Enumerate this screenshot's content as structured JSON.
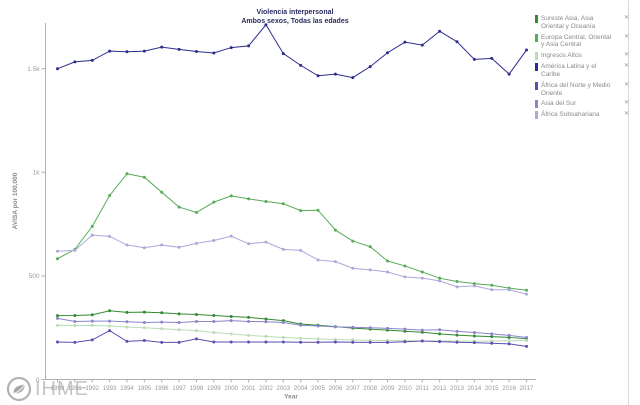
{
  "header": {
    "title": "Violencia interpersonal",
    "subtitle": "Ambos sexos, Todas las edades"
  },
  "branding": {
    "logo_text": "IHME",
    "logo_icon": "ihme-leaf-circle"
  },
  "legend": {
    "close_glyph": "✕",
    "items": [
      {
        "label": "Sureste Asia, Asia Oriental y Oceanía",
        "color": "#338a33"
      },
      {
        "label": "Europa Central, Oriental y Asia Central",
        "color": "#56ab56"
      },
      {
        "label": "Ingresos Altos",
        "color": "#b9ddb5"
      },
      {
        "label": "América Latina y el Caribe",
        "color": "#2c2c8f"
      },
      {
        "label": "África del Norte y Medio Oriente",
        "color": "#5b4fb0"
      },
      {
        "label": "Asia del Sur",
        "color": "#8a86cb"
      },
      {
        "label": "África Subsahariana",
        "color": "#aba8da"
      }
    ]
  },
  "chart_data": {
    "type": "line",
    "title": "Violencia interpersonal",
    "subtitle": "Ambos sexos, Todas las edades",
    "xlabel": "Year",
    "ylabel": "AVISA por 100,000",
    "x": [
      1990,
      1991,
      1992,
      1993,
      1994,
      1995,
      1996,
      1997,
      1998,
      1999,
      2000,
      2001,
      2002,
      2003,
      2004,
      2005,
      2006,
      2007,
      2008,
      2009,
      2010,
      2011,
      2012,
      2013,
      2014,
      2015,
      2016,
      2017
    ],
    "ylim": [
      0,
      1720
    ],
    "grid": false,
    "legend_position": "top-right",
    "yticks": [
      {
        "value": 0,
        "label": "0"
      },
      {
        "value": 500,
        "label": "500"
      },
      {
        "value": 1000,
        "label": "1k"
      },
      {
        "value": 1500,
        "label": "1.5k"
      }
    ],
    "series": [
      {
        "name": "Sureste Asia, Asia Oriental y Oceanía",
        "color": "#338a33",
        "values": [
          308,
          309,
          312,
          332,
          324,
          325,
          322,
          317,
          314,
          309,
          304,
          300,
          292,
          284,
          268,
          262,
          255,
          248,
          243,
          238,
          233,
          228,
          220,
          214,
          210,
          207,
          203,
          197
        ]
      },
      {
        "name": "Europa Central, Oriental y Asia Central",
        "color": "#56ab56",
        "values": [
          583,
          628,
          739,
          888,
          993,
          976,
          904,
          832,
          806,
          856,
          886,
          872,
          859,
          848,
          815,
          817,
          721,
          668,
          641,
          572,
          548,
          519,
          489,
          473,
          463,
          455,
          441,
          431
        ]
      },
      {
        "name": "Ingresos Altos",
        "color": "#b9ddb5",
        "values": [
          261,
          260,
          261,
          258,
          253,
          250,
          245,
          240,
          236,
          227,
          220,
          213,
          208,
          203,
          199,
          196,
          193,
          191,
          189,
          188,
          187,
          186,
          186,
          185,
          185,
          186,
          187,
          188
        ]
      },
      {
        "name": "América Latina y el Caribe",
        "color": "#2c2c8f",
        "values": [
          1500,
          1533,
          1540,
          1585,
          1582,
          1585,
          1604,
          1593,
          1583,
          1576,
          1602,
          1610,
          1712,
          1573,
          1516,
          1466,
          1474,
          1457,
          1510,
          1577,
          1628,
          1614,
          1681,
          1630,
          1545,
          1550,
          1474,
          1590
        ]
      },
      {
        "name": "África del Norte y Medio Oriente",
        "color": "#5b4fb0",
        "values": [
          181,
          179,
          191,
          236,
          184,
          188,
          179,
          179,
          196,
          181,
          181,
          181,
          181,
          181,
          180,
          180,
          181,
          180,
          179,
          179,
          182,
          186,
          183,
          180,
          178,
          175,
          172,
          160
        ]
      },
      {
        "name": "Asia del Sur",
        "color": "#8a86cb",
        "values": [
          295,
          280,
          282,
          282,
          279,
          275,
          277,
          275,
          280,
          280,
          284,
          280,
          279,
          275,
          262,
          258,
          254,
          252,
          250,
          247,
          243,
          238,
          240,
          232,
          227,
          220,
          213,
          203
        ]
      },
      {
        "name": "África Subsahariana",
        "color": "#aba8da",
        "values": [
          619,
          623,
          697,
          691,
          649,
          636,
          649,
          638,
          657,
          671,
          692,
          655,
          663,
          628,
          623,
          577,
          569,
          537,
          529,
          519,
          495,
          489,
          476,
          447,
          452,
          433,
          433,
          412
        ]
      }
    ]
  }
}
